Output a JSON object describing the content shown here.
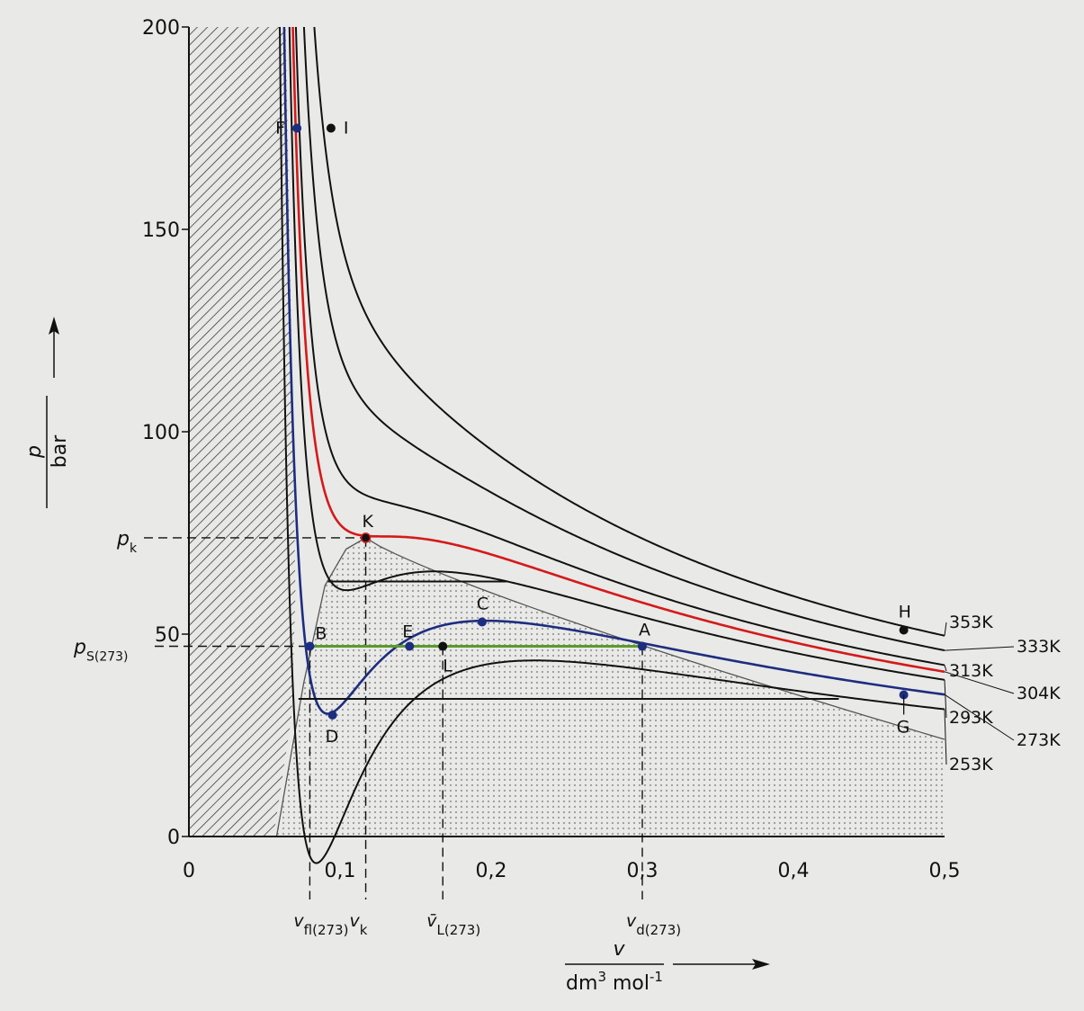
{
  "chart_data": {
    "type": "line",
    "title": "",
    "xlabel": {
      "numerator": "v",
      "denominator": "dm",
      "den_sup": "3",
      "den_mid": " mol",
      "den_sup2": "-1"
    },
    "ylabel": {
      "numerator": "p",
      "denominator": "bar"
    },
    "xlim": [
      0,
      0.5
    ],
    "ylim": [
      0,
      200
    ],
    "xticks": [
      {
        "value": 0,
        "label": "0"
      },
      {
        "value": 0.1,
        "label": "0,1"
      },
      {
        "value": 0.2,
        "label": "0,2"
      },
      {
        "value": 0.3,
        "label": "0,3"
      },
      {
        "value": 0.4,
        "label": "0,4"
      },
      {
        "value": 0.5,
        "label": "0,5"
      }
    ],
    "yticks": [
      {
        "value": 0,
        "label": "0"
      },
      {
        "value": 50,
        "label": "50"
      },
      {
        "value": 100,
        "label": "100"
      },
      {
        "value": 150,
        "label": "150"
      },
      {
        "value": 200,
        "label": "200"
      }
    ],
    "reference_lines": {
      "pk_value": 73.8,
      "ps_value": 47,
      "pk_label": "p",
      "pk_sub": "k",
      "ps_label": "p",
      "ps_sub": "S(273)",
      "vertical": [
        {
          "x": 0.08,
          "main": "v",
          "sub": "fl(273)"
        },
        {
          "x": 0.117,
          "main": "v",
          "sub": "k"
        },
        {
          "x": 0.168,
          "main": "v̄",
          "sub": "L(273)"
        },
        {
          "x": 0.3,
          "main": "v",
          "sub": "d(273)"
        }
      ]
    },
    "series": [
      {
        "name": "353K",
        "color": "#111111",
        "a": 3.64,
        "b": 0.0427,
        "T": 353,
        "xstart": 0.0565
      },
      {
        "name": "333K",
        "color": "#111111",
        "a": 3.64,
        "b": 0.0427,
        "T": 333,
        "xstart": 0.0565
      },
      {
        "name": "313K",
        "color": "#111111",
        "a": 3.64,
        "b": 0.0427,
        "T": 313,
        "xstart": 0.0565
      },
      {
        "name": "304K",
        "color": "#d41a1a",
        "a": 3.64,
        "b": 0.0427,
        "T": 304,
        "xstart": 0.0565
      },
      {
        "name": "293K",
        "color": "#111111",
        "a": 3.64,
        "b": 0.0427,
        "T": 293,
        "xstart": 0.0565
      },
      {
        "name": "273K",
        "color": "#1d2d80",
        "a": 3.64,
        "b": 0.0427,
        "T": 273,
        "xstart": 0.0565
      },
      {
        "name": "253K",
        "color": "#111111",
        "a": 3.64,
        "b": 0.0427,
        "T": 253,
        "xstart": 0.0565
      }
    ],
    "maxwell_line": {
      "y": 47,
      "x1": 0.08,
      "x2": 0.3,
      "color": "#5b9a2a"
    },
    "horizontal_lines": [
      {
        "y": 63,
        "x1": 0.092,
        "x2": 0.21
      },
      {
        "y": 34,
        "x1": 0.0725,
        "x2": 0.43
      }
    ],
    "points": [
      {
        "label": "F",
        "x": 0.0715,
        "y": 175
      },
      {
        "label": "I",
        "x": 0.094,
        "y": 175
      },
      {
        "label": "K",
        "x": 0.117,
        "y": 73.8
      },
      {
        "label": "C",
        "x": 0.194,
        "y": 53
      },
      {
        "label": "B",
        "x": 0.08,
        "y": 47
      },
      {
        "label": "E",
        "x": 0.146,
        "y": 47
      },
      {
        "label": "L",
        "x": 0.168,
        "y": 47
      },
      {
        "label": "A",
        "x": 0.3,
        "y": 47
      },
      {
        "label": "D",
        "x": 0.095,
        "y": 30
      },
      {
        "label": "H",
        "x": 0.473,
        "y": 51
      },
      {
        "label": "G",
        "x": 0.473,
        "y": 35
      }
    ]
  }
}
